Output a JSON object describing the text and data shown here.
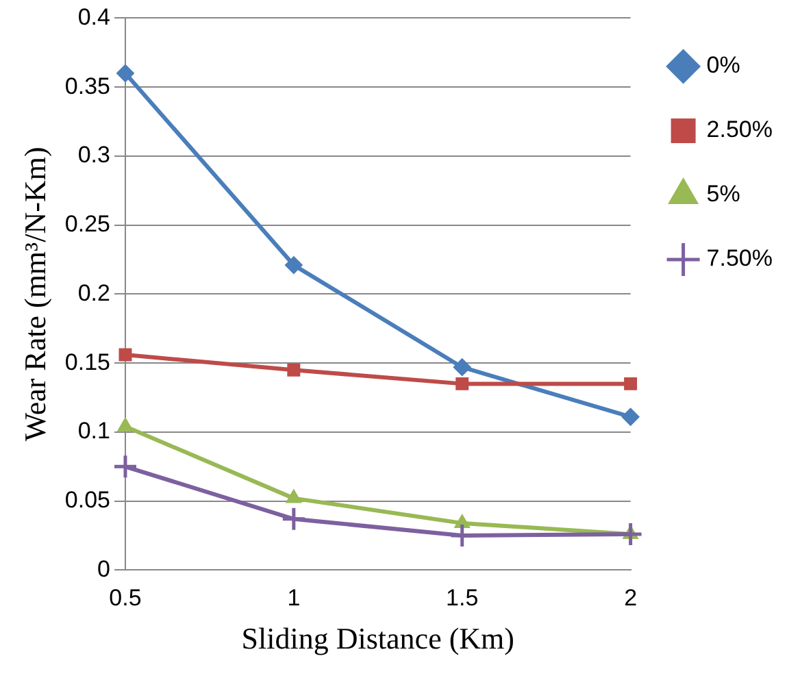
{
  "chart_data": {
    "type": "line",
    "xlabel": "Sliding Distance (Km)",
    "ylabel": "Wear Rate (mm³/N-Km)",
    "categories": [
      "0.5",
      "1",
      "1.5",
      "2"
    ],
    "series": [
      {
        "name": "0%",
        "color": "#4a7ebb",
        "marker": "diamond",
        "values": [
          0.36,
          0.221,
          0.147,
          0.111
        ]
      },
      {
        "name": "2.50%",
        "color": "#be4b48",
        "marker": "square",
        "values": [
          0.156,
          0.145,
          0.135,
          0.135
        ]
      },
      {
        "name": "5%",
        "color": "#98b954",
        "marker": "triangle",
        "values": [
          0.104,
          0.052,
          0.034,
          0.026
        ]
      },
      {
        "name": "7.50%",
        "color": "#7d60a0",
        "marker": "cross",
        "values": [
          0.075,
          0.037,
          0.025,
          0.026
        ]
      }
    ],
    "ylim": [
      0,
      0.4
    ],
    "yticks": [
      0,
      0.05,
      0.1,
      0.15,
      0.2,
      0.25,
      0.3,
      0.35,
      0.4
    ],
    "grid": "y",
    "legend": "right",
    "line_style": "solid"
  }
}
